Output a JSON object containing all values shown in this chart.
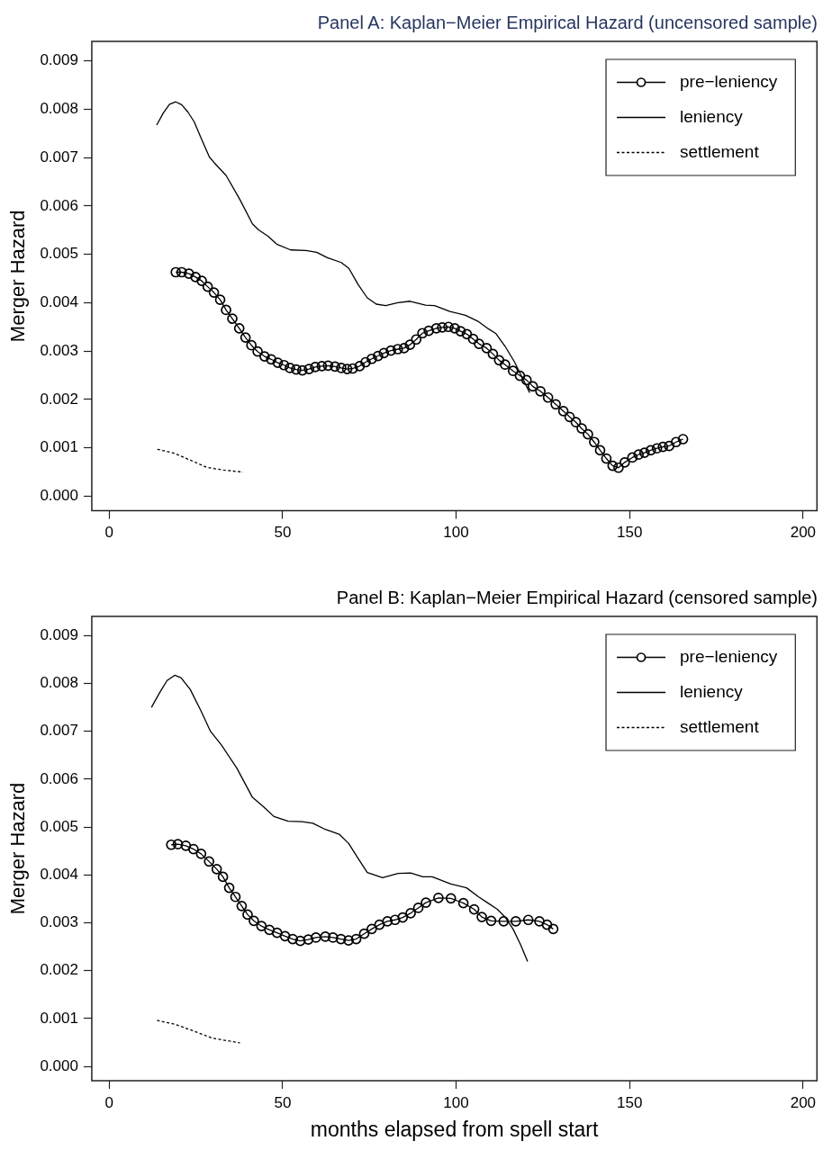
{
  "chart_data": [
    {
      "type": "line",
      "title": "Panel A: Kaplan−Meier Empirical Hazard (uncensored sample)",
      "ylabel": "Merger Hazard",
      "xlim": [
        -5,
        204
      ],
      "ylim": [
        -0.0003,
        0.0094
      ],
      "xticks": [
        0,
        50,
        100,
        150,
        200
      ],
      "yticks": [
        {
          "value": 0,
          "label": "0.000"
        },
        0.001,
        0.002,
        0.003,
        0.004,
        0.005,
        0.006,
        0.007,
        0.008,
        0.009
      ],
      "legend": "top right",
      "series": [
        {
          "name": "pre−leniency",
          "color": "#000000",
          "marker": "circle",
          "line_style": "solid",
          "x": [
            19.2,
            20.9,
            23.0,
            24.9,
            26.7,
            28.4,
            30.2,
            32.0,
            33.7,
            35.5,
            37.5,
            39.3,
            41.0,
            42.8,
            44.8,
            46.7,
            48.6,
            50.4,
            52.1,
            53.9,
            55.7,
            57.6,
            59.4,
            61.3,
            63.1,
            65.1,
            66.9,
            68.6,
            70.2,
            72.2,
            73.9,
            75.7,
            77.5,
            79.2,
            81.2,
            83.2,
            85.0,
            86.7,
            88.5,
            90.3,
            92.1,
            94.3,
            96.0,
            97.8,
            99.6,
            101.3,
            103.1,
            104.9,
            106.6,
            108.8,
            110.6,
            112.4,
            114.1,
            116.4,
            118.4,
            120.3,
            122.1,
            124.3,
            126.5,
            128.7,
            130.9,
            132.7,
            134.5,
            136.2,
            138.0,
            139.8,
            141.5,
            143.3,
            145.1,
            146.8,
            148.6,
            150.8,
            152.6,
            154.3,
            156.1,
            157.9,
            159.6,
            161.4,
            163.4,
            165.4
          ],
          "values": [
            0.00463,
            0.00463,
            0.0046,
            0.00453,
            0.00445,
            0.00433,
            0.00421,
            0.00406,
            0.00385,
            0.00367,
            0.00347,
            0.00328,
            0.00312,
            0.00299,
            0.00289,
            0.00283,
            0.00276,
            0.00271,
            0.00265,
            0.00262,
            0.0026,
            0.00263,
            0.00267,
            0.00269,
            0.0027,
            0.00268,
            0.00265,
            0.00263,
            0.00264,
            0.00269,
            0.00277,
            0.00284,
            0.0029,
            0.00296,
            0.00301,
            0.00304,
            0.00306,
            0.00313,
            0.00324,
            0.00337,
            0.00342,
            0.00347,
            0.00349,
            0.0035,
            0.00347,
            0.00341,
            0.00335,
            0.00325,
            0.00315,
            0.00306,
            0.00294,
            0.00281,
            0.00272,
            0.00259,
            0.00249,
            0.0024,
            0.00227,
            0.00217,
            0.00204,
            0.0019,
            0.00176,
            0.00164,
            0.00153,
            0.0014,
            0.00128,
            0.00112,
            0.00095,
            0.00078,
            0.00063,
            0.00059,
            0.0007,
            0.0008,
            0.00086,
            0.0009,
            0.00095,
            0.00099,
            0.00102,
            0.00104,
            0.00112,
            0.00118
          ]
        },
        {
          "name": "leniency",
          "color": "#000000",
          "line_style": "solid",
          "x": [
            13.7,
            15.6,
            17.4,
            19.2,
            20.9,
            22.7,
            24.5,
            26.7,
            28.9,
            30.2,
            33.7,
            37.7,
            41.3,
            43.0,
            45.7,
            48.3,
            52.3,
            56.7,
            59.8,
            62.9,
            66.9,
            69.1,
            71.7,
            74.4,
            77.0,
            79.7,
            83.2,
            86.7,
            91.2,
            93.8,
            98.2,
            102.7,
            106.2,
            109.3,
            111.5,
            114.1,
            116.8,
            119.0,
            121.2
          ],
          "values": [
            0.00767,
            0.00792,
            0.0081,
            0.00815,
            0.00809,
            0.00794,
            0.00774,
            0.00737,
            0.00701,
            0.0069,
            0.00663,
            0.00613,
            0.00563,
            0.00551,
            0.00538,
            0.00521,
            0.00509,
            0.00508,
            0.00504,
            0.00493,
            0.00483,
            0.00471,
            0.00438,
            0.0041,
            0.00397,
            0.00394,
            0.004,
            0.00403,
            0.00395,
            0.00394,
            0.00382,
            0.00374,
            0.00362,
            0.00346,
            0.00336,
            0.0031,
            0.00278,
            0.00246,
            0.00214
          ]
        },
        {
          "name": "settlement",
          "color": "#000000",
          "line_style": "dotted",
          "x": [
            13.9,
            18.7,
            23.6,
            28.0,
            32.9,
            38.6
          ],
          "values": [
            0.00097,
            0.00089,
            0.00074,
            0.0006,
            0.00054,
            0.0005
          ]
        }
      ]
    },
    {
      "type": "line",
      "title": "Panel B: Kaplan−Meier Empirical Hazard (censored sample)",
      "xlabel": "months elapsed from spell start",
      "ylabel": "Merger Hazard",
      "xlim": [
        -5,
        204
      ],
      "ylim": [
        -0.0003,
        0.0094
      ],
      "xticks": [
        0,
        50,
        100,
        150,
        200
      ],
      "yticks": [
        {
          "value": 0,
          "label": "0.000"
        },
        0.001,
        0.002,
        0.003,
        0.004,
        0.005,
        0.006,
        0.007,
        0.008,
        0.009
      ],
      "legend": "top right",
      "series": [
        {
          "name": "pre−leniency",
          "color": "#000000",
          "marker": "circle",
          "line_style": "solid",
          "x": [
            17.9,
            19.8,
            22.1,
            24.3,
            26.5,
            28.8,
            31.0,
            32.8,
            34.6,
            36.4,
            38.2,
            39.9,
            41.7,
            43.9,
            46.2,
            48.4,
            50.7,
            52.9,
            55.1,
            57.4,
            59.6,
            62.3,
            64.5,
            66.8,
            69.0,
            71.2,
            73.5,
            75.7,
            77.9,
            80.2,
            82.4,
            84.6,
            86.9,
            89.1,
            91.3,
            94.9,
            98.5,
            102.1,
            105.2,
            107.4,
            110.1,
            113.7,
            117.2,
            120.8,
            124.0,
            126.2,
            128.0
          ],
          "values": [
            0.00463,
            0.00464,
            0.00461,
            0.00454,
            0.00444,
            0.00428,
            0.00412,
            0.00396,
            0.00373,
            0.00354,
            0.00335,
            0.00317,
            0.00304,
            0.00293,
            0.00285,
            0.00279,
            0.00272,
            0.00266,
            0.00262,
            0.00265,
            0.00269,
            0.00271,
            0.00269,
            0.00266,
            0.00263,
            0.00266,
            0.00277,
            0.00287,
            0.00296,
            0.00303,
            0.00306,
            0.00311,
            0.0032,
            0.00331,
            0.00342,
            0.00352,
            0.00351,
            0.00341,
            0.00328,
            0.00312,
            0.00304,
            0.00303,
            0.00303,
            0.00306,
            0.00303,
            0.00296,
            0.00287
          ]
        },
        {
          "name": "leniency",
          "color": "#000000",
          "line_style": "solid",
          "x": [
            12.2,
            14.5,
            16.7,
            18.9,
            20.7,
            23.4,
            26.5,
            29.2,
            32.4,
            36.8,
            41.3,
            44.4,
            47.5,
            51.6,
            55.6,
            58.7,
            62.3,
            66.3,
            69.0,
            71.7,
            74.4,
            78.8,
            83.3,
            86.9,
            90.4,
            93.1,
            98.5,
            103.0,
            106.5,
            109.2,
            111.9,
            114.1,
            116.4,
            118.6,
            120.6
          ],
          "values": [
            0.0075,
            0.0078,
            0.00806,
            0.00817,
            0.00812,
            0.00787,
            0.00742,
            0.007,
            0.00671,
            0.00623,
            0.00562,
            0.00543,
            0.00522,
            0.00512,
            0.00511,
            0.00508,
            0.00495,
            0.00485,
            0.00466,
            0.00435,
            0.00405,
            0.00394,
            0.00403,
            0.00404,
            0.00396,
            0.00396,
            0.00381,
            0.00373,
            0.00354,
            0.00341,
            0.00328,
            0.00312,
            0.00287,
            0.00254,
            0.00219
          ]
        },
        {
          "name": "settlement",
          "color": "#000000",
          "line_style": "dotted",
          "x": [
            13.8,
            18.9,
            24.3,
            29.7,
            37.7
          ],
          "values": [
            0.00096,
            0.00088,
            0.00074,
            0.00059,
            0.00049
          ]
        }
      ]
    }
  ]
}
